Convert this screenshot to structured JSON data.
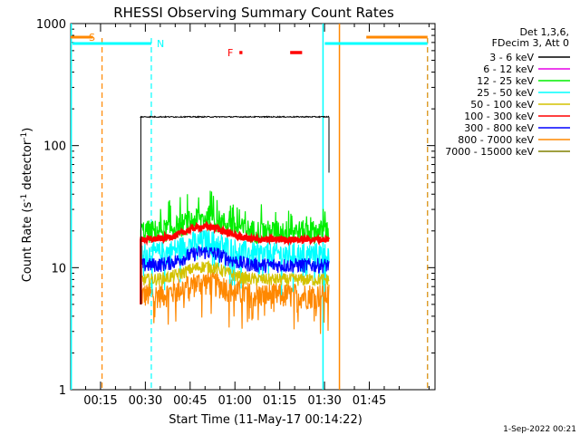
{
  "chart_data": {
    "type": "line",
    "title": "RHESSI Observing Summary Count Rates",
    "xlabel": "Start Time (11-May-17 00:14:22)",
    "ylabel_main": "Count Rate (s",
    "ylabel_sup1": "-1",
    "ylabel_mid": " detector",
    "ylabel_sup2": "-1",
    "ylabel_end": ")",
    "y_scale": "log",
    "ylim": [
      1,
      1000
    ],
    "xlim_minutes": [
      5,
      127
    ],
    "x_ticks": [
      {
        "label": "00:15",
        "minute": 15
      },
      {
        "label": "00:30",
        "minute": 30
      },
      {
        "label": "00:45",
        "minute": 45
      },
      {
        "label": "01:00",
        "minute": 60
      },
      {
        "label": "01:15",
        "minute": 75
      },
      {
        "label": "01:30",
        "minute": 90
      },
      {
        "label": "01:45",
        "minute": 105
      }
    ],
    "y_ticks": [
      {
        "label": "1",
        "value": 1
      },
      {
        "label": "10",
        "value": 10
      },
      {
        "label": "100",
        "value": 100
      },
      {
        "label": "1000",
        "value": 1000
      }
    ],
    "legend_header": [
      "Det 1,3,6,",
      "FDecim 3, Att 0"
    ],
    "series": [
      {
        "name": "3 - 6 keV",
        "color": "#000000",
        "level": 172
      },
      {
        "name": "6 - 12 keV",
        "color": "#e600e6",
        "level": null
      },
      {
        "name": "12 - 25 keV",
        "color": "#00ee00",
        "level": 20
      },
      {
        "name": "25 - 50 keV",
        "color": "#00ffff",
        "level": 13
      },
      {
        "name": "50 - 100 keV",
        "color": "#d4c200",
        "level": 8
      },
      {
        "name": "100 - 300 keV",
        "color": "#ff0000",
        "level": 17
      },
      {
        "name": "300 - 800 keV",
        "color": "#0000ff",
        "level": 10.5
      },
      {
        "name": "800 - 7000 keV",
        "color": "#ff8800",
        "level": 6
      },
      {
        "name": "7000 - 15000 keV",
        "color": "#808000",
        "level": null
      }
    ],
    "data_interval_minutes": [
      28.5,
      91.5
    ],
    "markers": [
      {
        "label": "S",
        "color": "#ff8800"
      },
      {
        "label": "N",
        "color": "#00ffff"
      },
      {
        "label": "F",
        "color": "#ff0000"
      }
    ],
    "saa_intervals_minutes": [
      [
        15.5,
        124.5
      ]
    ],
    "night_intervals_minutes": [
      [
        5,
        32
      ],
      [
        89.5,
        124.5
      ]
    ],
    "flare_intervals_minutes": [
      [
        61.5,
        62.5
      ],
      [
        78.5,
        82.5
      ]
    ],
    "vertical_lines": {
      "cyan_solid": [
        5.2,
        89.5
      ],
      "cyan_dashed": [
        32,
        124.5
      ],
      "orange_dashed": [
        15.5,
        124.5
      ],
      "orange_solid": [
        95
      ]
    },
    "timestamp": "1-Sep-2022 00:21"
  }
}
